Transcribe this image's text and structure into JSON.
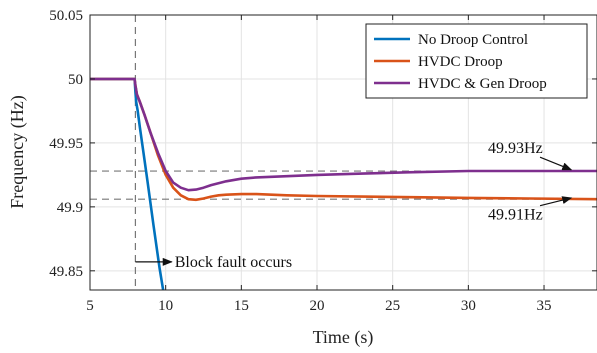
{
  "chart_data": {
    "type": "line",
    "title": "",
    "xlabel": "Time (s)",
    "ylabel": "Frequency (Hz)",
    "xlim": [
      5,
      38.5
    ],
    "ylim": [
      49.835,
      50.05
    ],
    "xticks": [
      5,
      10,
      15,
      20,
      25,
      30,
      35
    ],
    "yticks": [
      49.85,
      49.9,
      49.95,
      50,
      50.05
    ],
    "x_tick_labels": [
      "5",
      "10",
      "15",
      "20",
      "25",
      "30",
      "35"
    ],
    "y_tick_labels": [
      "49.85",
      "49.9",
      "49.95",
      "50",
      "50.05"
    ],
    "grid": true,
    "legend_position": "top-right",
    "series": [
      {
        "name": "No Droop Control",
        "color": "#0072BD",
        "x": [
          5,
          7.95,
          8.0,
          8.05,
          8.15,
          8.3,
          8.5,
          8.8,
          9.2,
          9.6,
          9.9
        ],
        "y": [
          50.0,
          50.0,
          49.99,
          49.982,
          49.975,
          49.962,
          49.945,
          49.92,
          49.885,
          49.852,
          49.83
        ]
      },
      {
        "name": "HVDC Droop",
        "color": "#D95319",
        "x": [
          5,
          7.95,
          8.0,
          8.1,
          8.3,
          8.6,
          9.0,
          9.5,
          10.0,
          10.5,
          11.0,
          11.5,
          12.0,
          12.5,
          13.0,
          13.5,
          14.0,
          15.0,
          16.0,
          17.0,
          18.0,
          20.0,
          23.0,
          27.0,
          30.0,
          34.0,
          38.5
        ],
        "y": [
          50.0,
          50.0,
          49.995,
          49.988,
          49.982,
          49.972,
          49.958,
          49.94,
          49.925,
          49.915,
          49.909,
          49.906,
          49.9055,
          49.9065,
          49.908,
          49.909,
          49.9095,
          49.91,
          49.91,
          49.9095,
          49.909,
          49.9085,
          49.908,
          49.9075,
          49.907,
          49.9065,
          49.906
        ]
      },
      {
        "name": "HVDC & Gen Droop",
        "color": "#7E2F8E",
        "x": [
          5,
          7.95,
          8.0,
          8.1,
          8.3,
          8.6,
          9.0,
          9.5,
          10.0,
          10.5,
          11.0,
          11.5,
          12.0,
          12.5,
          13.0,
          14.0,
          15.0,
          16.0,
          18.0,
          20.0,
          23.0,
          26.0,
          30.0,
          34.0,
          38.5
        ],
        "y": [
          50.0,
          50.0,
          49.995,
          49.988,
          49.982,
          49.972,
          49.958,
          49.942,
          49.928,
          49.919,
          49.915,
          49.913,
          49.9135,
          49.915,
          49.917,
          49.92,
          49.922,
          49.923,
          49.924,
          49.925,
          49.926,
          49.927,
          49.928,
          49.928,
          49.928
        ]
      }
    ],
    "reference_lines": [
      {
        "axis": "y",
        "value": 49.928,
        "style": "dashed",
        "color": "#777777"
      },
      {
        "axis": "y",
        "value": 49.906,
        "style": "dashed",
        "color": "#777777"
      },
      {
        "axis": "x",
        "value": 8,
        "style": "dashed",
        "color": "#777777"
      }
    ],
    "annotations": [
      {
        "text": "49.93Hz",
        "label_at": [
          31.3,
          49.942
        ],
        "arrow_to": [
          36.8,
          49.929
        ]
      },
      {
        "text": "49.91Hz",
        "label_at": [
          31.3,
          49.89
        ],
        "arrow_to": [
          36.8,
          49.907
        ]
      },
      {
        "text": "Block fault occurs",
        "label_at": [
          10.6,
          49.857
        ],
        "arrow_from": [
          8.0,
          49.857
        ],
        "arrow_to": [
          10.4,
          49.857
        ]
      }
    ]
  }
}
